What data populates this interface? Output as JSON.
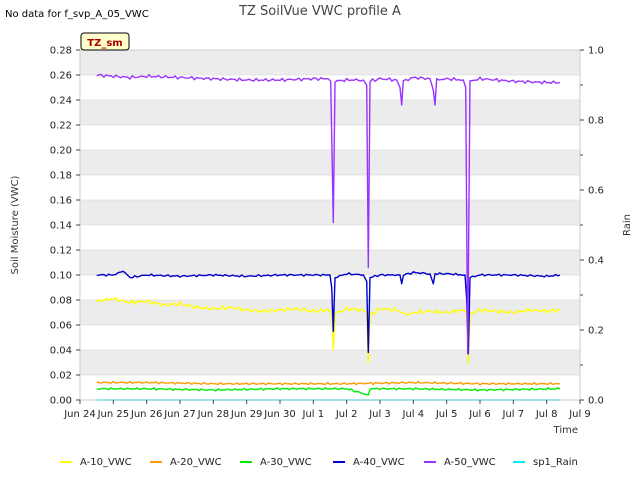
{
  "no_data_note": "No data for f_svp_A_05_VWC",
  "site_badge": "TZ_sm",
  "chart_data": {
    "type": "line",
    "title": "TZ SoilVue VWC profile A",
    "xlabel": "Time",
    "ylabel": "Soil Moisture (VWC)",
    "y2label": "Rain",
    "ylim": [
      0.0,
      0.28
    ],
    "y2lim": [
      0.0,
      1.0
    ],
    "xlim": [
      0,
      15
    ],
    "yticks": [
      "0.00",
      "0.02",
      "0.04",
      "0.06",
      "0.08",
      "0.10",
      "0.12",
      "0.14",
      "0.16",
      "0.18",
      "0.20",
      "0.22",
      "0.24",
      "0.26",
      "0.28"
    ],
    "y2ticks": [
      "0.0",
      "0.2",
      "0.4",
      "0.6",
      "0.8",
      "1.0"
    ],
    "xticks": [
      "Jun 24",
      "Jun 25",
      "Jun 26",
      "Jun 27",
      "Jun 28",
      "Jun 29",
      "Jun 30",
      "Jul 1",
      "Jul 2",
      "Jul 3",
      "Jul 4",
      "Jul 5",
      "Jul 6",
      "Jul 7",
      "Jul 8",
      "Jul 9"
    ],
    "grid": true,
    "legend": "bottom",
    "series": [
      {
        "name": "A-10_VWC",
        "color": "#ffff00",
        "points": [
          [
            0.5,
            0.079
          ],
          [
            1.0,
            0.081
          ],
          [
            1.5,
            0.078
          ],
          [
            2.0,
            0.079
          ],
          [
            2.5,
            0.076
          ],
          [
            3.0,
            0.077
          ],
          [
            3.5,
            0.074
          ],
          [
            4.0,
            0.073
          ],
          [
            4.5,
            0.074
          ],
          [
            5.0,
            0.072
          ],
          [
            5.5,
            0.071
          ],
          [
            6.0,
            0.072
          ],
          [
            6.5,
            0.073
          ],
          [
            7.0,
            0.071
          ],
          [
            7.45,
            0.072
          ],
          [
            7.55,
            0.07
          ],
          [
            7.6,
            0.04
          ],
          [
            7.65,
            0.069
          ],
          [
            8.0,
            0.073
          ],
          [
            8.5,
            0.072
          ],
          [
            8.6,
            0.07
          ],
          [
            8.65,
            0.03
          ],
          [
            8.7,
            0.068
          ],
          [
            9.0,
            0.073
          ],
          [
            9.5,
            0.072
          ],
          [
            9.8,
            0.068
          ],
          [
            10.0,
            0.07
          ],
          [
            10.5,
            0.071
          ],
          [
            11.0,
            0.07
          ],
          [
            11.5,
            0.072
          ],
          [
            11.6,
            0.07
          ],
          [
            11.65,
            0.029
          ],
          [
            11.7,
            0.069
          ],
          [
            12.0,
            0.072
          ],
          [
            12.5,
            0.071
          ],
          [
            13.0,
            0.07
          ],
          [
            13.5,
            0.072
          ],
          [
            14.0,
            0.071
          ],
          [
            14.4,
            0.072
          ]
        ]
      },
      {
        "name": "A-20_VWC",
        "color": "#ff9900",
        "points": [
          [
            0.5,
            0.014
          ],
          [
            2.0,
            0.014
          ],
          [
            4.0,
            0.013
          ],
          [
            6.0,
            0.013
          ],
          [
            8.0,
            0.013
          ],
          [
            10.0,
            0.014
          ],
          [
            12.0,
            0.013
          ],
          [
            14.4,
            0.013
          ]
        ]
      },
      {
        "name": "A-30_VWC",
        "color": "#00ee00",
        "points": [
          [
            0.5,
            0.009
          ],
          [
            2.0,
            0.009
          ],
          [
            4.0,
            0.008
          ],
          [
            6.0,
            0.009
          ],
          [
            8.0,
            0.009
          ],
          [
            8.65,
            0.004
          ],
          [
            8.7,
            0.009
          ],
          [
            10.0,
            0.009
          ],
          [
            12.0,
            0.008
          ],
          [
            14.4,
            0.009
          ]
        ]
      },
      {
        "name": "A-40_VWC",
        "color": "#0000cc",
        "points": [
          [
            0.5,
            0.1
          ],
          [
            1.0,
            0.1
          ],
          [
            1.3,
            0.103
          ],
          [
            1.5,
            0.098
          ],
          [
            2.0,
            0.1
          ],
          [
            3.0,
            0.099
          ],
          [
            4.0,
            0.1
          ],
          [
            5.0,
            0.099
          ],
          [
            6.0,
            0.1
          ],
          [
            7.0,
            0.1
          ],
          [
            7.5,
            0.1
          ],
          [
            7.55,
            0.09
          ],
          [
            7.6,
            0.055
          ],
          [
            7.65,
            0.098
          ],
          [
            8.0,
            0.101
          ],
          [
            8.5,
            0.1
          ],
          [
            8.6,
            0.095
          ],
          [
            8.65,
            0.038
          ],
          [
            8.7,
            0.098
          ],
          [
            9.0,
            0.1
          ],
          [
            9.6,
            0.1
          ],
          [
            9.65,
            0.093
          ],
          [
            9.7,
            0.1
          ],
          [
            10.0,
            0.102
          ],
          [
            10.5,
            0.101
          ],
          [
            10.6,
            0.093
          ],
          [
            10.65,
            0.101
          ],
          [
            11.0,
            0.101
          ],
          [
            11.55,
            0.1
          ],
          [
            11.6,
            0.08
          ],
          [
            11.65,
            0.037
          ],
          [
            11.7,
            0.098
          ],
          [
            12.0,
            0.1
          ],
          [
            13.0,
            0.1
          ],
          [
            14.0,
            0.099
          ],
          [
            14.4,
            0.1
          ]
        ]
      },
      {
        "name": "A-50_VWC",
        "color": "#9933ff",
        "points": [
          [
            0.5,
            0.26
          ],
          [
            1.0,
            0.259
          ],
          [
            1.5,
            0.258
          ],
          [
            2.0,
            0.259
          ],
          [
            3.0,
            0.258
          ],
          [
            4.0,
            0.257
          ],
          [
            5.0,
            0.256
          ],
          [
            6.0,
            0.256
          ],
          [
            7.0,
            0.257
          ],
          [
            7.45,
            0.257
          ],
          [
            7.52,
            0.255
          ],
          [
            7.6,
            0.142
          ],
          [
            7.65,
            0.255
          ],
          [
            8.0,
            0.256
          ],
          [
            8.5,
            0.256
          ],
          [
            8.6,
            0.252
          ],
          [
            8.65,
            0.106
          ],
          [
            8.7,
            0.255
          ],
          [
            9.0,
            0.257
          ],
          [
            9.5,
            0.256
          ],
          [
            9.6,
            0.25
          ],
          [
            9.65,
            0.236
          ],
          [
            9.7,
            0.255
          ],
          [
            10.0,
            0.258
          ],
          [
            10.5,
            0.257
          ],
          [
            10.6,
            0.248
          ],
          [
            10.65,
            0.236
          ],
          [
            10.7,
            0.256
          ],
          [
            11.0,
            0.257
          ],
          [
            11.5,
            0.256
          ],
          [
            11.57,
            0.25
          ],
          [
            11.63,
            0.037
          ],
          [
            11.7,
            0.255
          ],
          [
            12.0,
            0.257
          ],
          [
            13.0,
            0.255
          ],
          [
            14.0,
            0.254
          ],
          [
            14.4,
            0.254
          ]
        ]
      },
      {
        "name": "sp1_Rain",
        "color": "#00eeee",
        "axis": "right",
        "points": [
          [
            0.5,
            0.0
          ],
          [
            14.4,
            0.0
          ]
        ]
      }
    ]
  }
}
